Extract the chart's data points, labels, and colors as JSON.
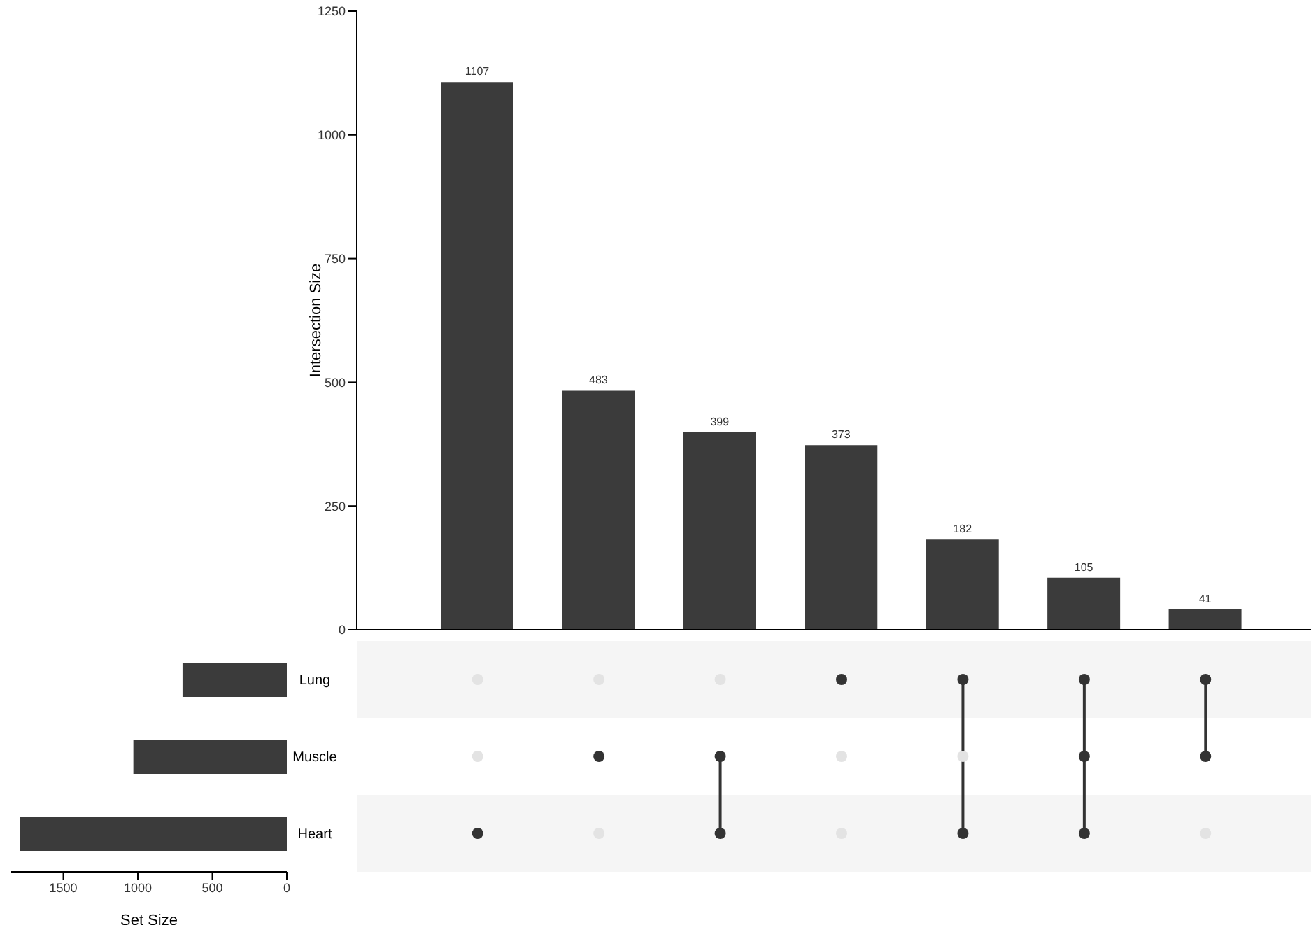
{
  "chart_data": [
    {
      "type": "bar",
      "categories": [
        null,
        null,
        null,
        null,
        null,
        null,
        null
      ],
      "values": [
        1107,
        483,
        399,
        373,
        182,
        105,
        41
      ],
      "color": "#3b3b3b",
      "ylim": [
        0,
        1250
      ],
      "yticks": [
        0,
        250,
        500,
        750,
        1000,
        1250
      ],
      "ylabel": "Intersection Size",
      "data_labels": true
    },
    {
      "type": "bar",
      "orientation": "horizontal",
      "categories": [
        "Lung",
        "Muscle",
        "Heart"
      ],
      "values": [
        700,
        1030,
        1790
      ],
      "color": "#3b3b3b",
      "xlim": [
        1850,
        0
      ],
      "xticks": [
        0,
        500,
        1000,
        1500
      ],
      "xlabel": "Set Size"
    }
  ]
}
